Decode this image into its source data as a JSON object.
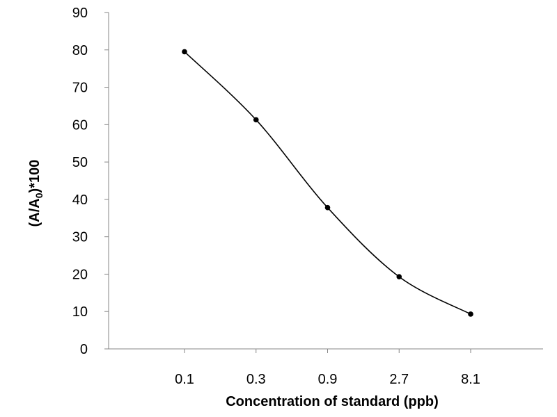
{
  "chart_data": {
    "type": "line",
    "smooth": true,
    "categories": [
      "0.1",
      "0.3",
      "0.9",
      "2.7",
      "8.1"
    ],
    "series": [
      {
        "values": [
          79.5,
          61.3,
          37.8,
          19.3,
          9.3
        ],
        "color": "#000000",
        "marker": "circle"
      }
    ],
    "title": "",
    "xlabel": "Concentration of standard (ppb)",
    "ylabel_main": "(A/A",
    "ylabel_sub": "0",
    "ylabel_tail": ")*100",
    "ylim": [
      0,
      90
    ],
    "yticks": [
      0,
      10,
      20,
      30,
      40,
      50,
      60,
      70,
      80,
      90
    ],
    "grid": false,
    "legend": "none",
    "axis_color": "#868686"
  }
}
